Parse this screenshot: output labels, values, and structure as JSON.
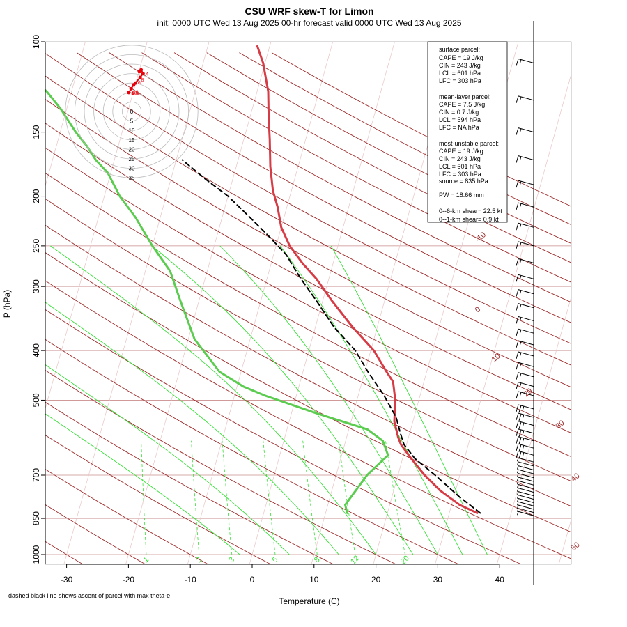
{
  "header": {
    "title": "CSU WRF skew-T for Limon",
    "subtitle": "init: 0000 UTC Wed 13 Aug 2025    00-hr forecast valid 0000 UTC Wed 13 Aug 2025"
  },
  "chart_data": {
    "type": "line",
    "title": "CSU WRF skew-T for Limon",
    "xlabel": "Temperature (C)",
    "ylabel": "P (hPa)",
    "xlim": [
      -33,
      45
    ],
    "ylim": [
      1050,
      100
    ],
    "y_scale": "log",
    "x_ticks": [
      "-30",
      "-20",
      "-10",
      "0",
      "10",
      "20",
      "30",
      "40"
    ],
    "p_ticks": [
      {
        "p": 100,
        "label": "100"
      },
      {
        "p": 150,
        "label": "150"
      },
      {
        "p": 200,
        "label": "200"
      },
      {
        "p": 250,
        "label": "250"
      },
      {
        "p": 300,
        "label": "300"
      },
      {
        "p": 400,
        "label": "400"
      },
      {
        "p": 500,
        "label": "500"
      },
      {
        "p": 700,
        "label": "700"
      },
      {
        "p": 850,
        "label": "850"
      },
      {
        "p": 1000,
        "label": "1000"
      }
    ],
    "isotherm_labels": [
      {
        "t": -10,
        "label": "-10"
      },
      {
        "t": 0,
        "label": "0"
      },
      {
        "t": 10,
        "label": "10"
      },
      {
        "t": 20,
        "label": "20"
      },
      {
        "t": 30,
        "label": "30"
      },
      {
        "t": 40,
        "label": "40"
      },
      {
        "t": 50,
        "label": "50"
      }
    ],
    "mixing_ratio_labels": [
      "1",
      "2",
      "3",
      "5",
      "8",
      "12",
      "20"
    ],
    "series": [
      {
        "kind": "temperature",
        "color": "#d63c46",
        "points": [
          [
            34.5,
            830
          ],
          [
            31.3,
            800
          ],
          [
            27.5,
            750
          ],
          [
            24.3,
            700
          ],
          [
            21.4,
            650
          ],
          [
            19.1,
            610
          ],
          [
            18.3,
            590
          ],
          [
            17.0,
            550
          ],
          [
            16.2,
            500
          ],
          [
            15.0,
            460
          ],
          [
            13.5,
            440
          ],
          [
            10.5,
            400
          ],
          [
            6.0,
            360
          ],
          [
            1.5,
            320
          ],
          [
            -2.0,
            290
          ],
          [
            -5.0,
            270
          ],
          [
            -7.8,
            250
          ],
          [
            -10.0,
            230
          ],
          [
            -11.5,
            210
          ],
          [
            -13.0,
            195
          ],
          [
            -14.5,
            175
          ],
          [
            -15.8,
            155
          ],
          [
            -17.0,
            140
          ],
          [
            -18.2,
            125
          ],
          [
            -20.3,
            110
          ],
          [
            -22.0,
            102
          ]
        ]
      },
      {
        "kind": "dewpoint",
        "color": "#5ccc50",
        "points": [
          [
            13.5,
            830
          ],
          [
            12.8,
            800
          ],
          [
            15.0,
            700
          ],
          [
            17.5,
            640
          ],
          [
            16.0,
            600
          ],
          [
            13.0,
            570
          ],
          [
            4.0,
            530
          ],
          [
            -5.0,
            490
          ],
          [
            -9.0,
            470
          ],
          [
            -13.5,
            440
          ],
          [
            -19.0,
            380
          ],
          [
            -23.0,
            320
          ],
          [
            -26.0,
            280
          ],
          [
            -30.0,
            250
          ],
          [
            -34.0,
            220
          ],
          [
            -37.5,
            200
          ],
          [
            -40.5,
            180
          ],
          [
            -43.0,
            170
          ],
          [
            -45.0,
            160
          ],
          [
            -47.5,
            150
          ],
          [
            -51.0,
            135
          ],
          [
            -54.0,
            125
          ],
          [
            -57.0,
            118
          ],
          [
            -60.0,
            110
          ],
          [
            -63.0,
            104
          ]
        ]
      },
      {
        "kind": "parcel",
        "color": "#000000",
        "points": [
          [
            35.0,
            830
          ],
          [
            30.8,
            770
          ],
          [
            26.0,
            700
          ],
          [
            22.0,
            650
          ],
          [
            19.6,
            610
          ],
          [
            18.5,
            580
          ],
          [
            17.1,
            540
          ],
          [
            14.2,
            490
          ],
          [
            10.5,
            440
          ],
          [
            7.5,
            400
          ],
          [
            3.0,
            360
          ],
          [
            -1.0,
            320
          ],
          [
            -4.5,
            290
          ],
          [
            -8.0,
            260
          ],
          [
            -11.5,
            240
          ],
          [
            -15.5,
            220
          ],
          [
            -20.0,
            200
          ],
          [
            -24.5,
            185
          ],
          [
            -29.0,
            170
          ]
        ]
      }
    ],
    "stats": {
      "surface_header": "surface parcel:",
      "surface_cape": "CAPE = 19 J/kg",
      "surface_cin": "CIN = 243 J/kg",
      "surface_lcl": "LCL = 601 hPa",
      "surface_lfc": "LFC = 303 hPa",
      "mean_header": "mean-layer parcel:",
      "mean_cape": "CAPE = 7.5 J/kg",
      "mean_cin": "CIN = 0.7 J/kg",
      "mean_lcl": "LCL = 594 hPa",
      "mean_lfc": "LFC = NA hPa",
      "mu_header": "most-unstable parcel:",
      "mu_cape": "CAPE = 19 J/kg",
      "mu_cin": "CIN = 243 J/kg",
      "mu_lcl": "LCL = 601 hPa",
      "mu_lfc": "LFC = 303 hPa",
      "mu_source": "source = 835 hPa",
      "pw": "PW =  18.66 mm",
      "shear6": "0--6-km shear= 22.5 kt",
      "shear1": "0--1-km shear= 0.9 kt"
    },
    "hodograph": {
      "ring_labels": [
        "0",
        "5",
        "10",
        "15",
        "20",
        "25",
        "30",
        "35"
      ],
      "points": [
        [
          -1.5,
          10
        ],
        [
          -0.3,
          12
        ],
        [
          1.0,
          14
        ],
        [
          2.0,
          15
        ],
        [
          4.5,
          18
        ],
        [
          6,
          20
        ],
        [
          5,
          22
        ],
        [
          4,
          21
        ]
      ],
      "height_labels": [
        {
          "label": "4",
          "u": 6,
          "v": 20
        },
        {
          "label": "8",
          "u": 3.5,
          "v": 17
        },
        {
          "label": "6",
          "u": 1.8,
          "v": 15.5
        },
        {
          "label": "12",
          "u": -0.8,
          "v": 10.5
        },
        {
          "label": "10",
          "u": -1.5,
          "v": 10.0
        },
        {
          "label": "0.6",
          "u": -1.3,
          "v": 9.7
        },
        {
          "label": "0.5",
          "u": -1.7,
          "v": 9.6
        }
      ]
    },
    "footnote": "dashed black line shows ascent of parcel with max theta-e"
  }
}
